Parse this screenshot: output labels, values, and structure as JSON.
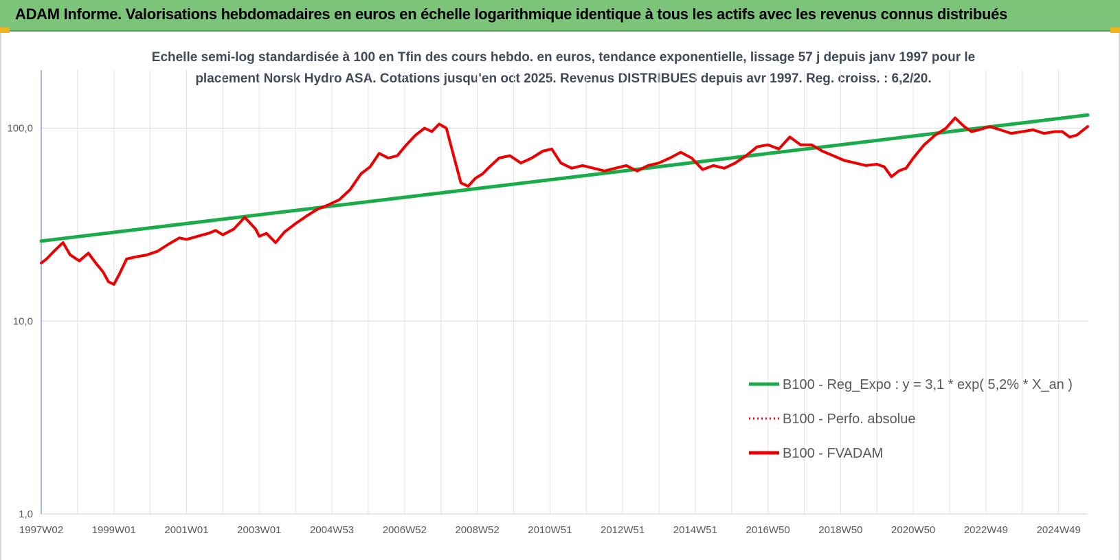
{
  "banner": {
    "title": "ADAM Informe. Valorisations hebdomadaires en euros en échelle logarithmique identique à tous les actifs avec les revenus connus distribués",
    "background_color": "#7cc47a",
    "corner_color": "#f2b21b"
  },
  "chart_data": {
    "type": "line",
    "title_lines": [
      "Echelle semi-log standardisée à 100 en Tfin des cours hebdo. en euros, tendance exponentielle, lissage 57 j depuis janv 1997 pour le",
      "placement Norsk Hydro ASA. Cotations jusqu'en oct 2025. Revenus DISTRIBUES depuis avr 1997. Reg. croiss. : 6,2/20."
    ],
    "y_scale": "log",
    "ylim": [
      1,
      200
    ],
    "xlim": [
      1997.0,
      2025.8
    ],
    "y_ticks": [
      {
        "value": 1,
        "label": "1,0"
      },
      {
        "value": 10,
        "label": "10,0"
      },
      {
        "value": 100,
        "label": "100,0"
      }
    ],
    "x_ticks": [
      {
        "value": 1997.0,
        "label": "1997W02"
      },
      {
        "value": 1999.0,
        "label": "1999W01"
      },
      {
        "value": 2001.0,
        "label": "2001W01"
      },
      {
        "value": 2003.0,
        "label": "2003W01"
      },
      {
        "value": 2005.0,
        "label": "2004W53"
      },
      {
        "value": 2007.0,
        "label": "2006W52"
      },
      {
        "value": 2009.0,
        "label": "2008W52"
      },
      {
        "value": 2011.0,
        "label": "2010W51"
      },
      {
        "value": 2013.0,
        "label": "2012W51"
      },
      {
        "value": 2015.0,
        "label": "2014W51"
      },
      {
        "value": 2017.0,
        "label": "2016W50"
      },
      {
        "value": 2019.0,
        "label": "2018W50"
      },
      {
        "value": 2021.0,
        "label": "2020W50"
      },
      {
        "value": 2023.0,
        "label": "2022W49"
      },
      {
        "value": 2025.0,
        "label": "2024W49"
      }
    ],
    "grid": "vertical-and-horizontal",
    "legend_position": "bottom-right",
    "series": [
      {
        "name": "B100 - Reg_Expo : y = 3,1 * exp( 5,2% *  X_an )",
        "color": "#1aab4b",
        "style": "solid-thick",
        "x": [
          1997.0,
          2025.8
        ],
        "y": [
          26.0,
          117.0
        ]
      },
      {
        "name": "B100 - Perfo. absolue",
        "color": "#ee0000",
        "style": "dotted",
        "x": [],
        "y": []
      },
      {
        "name": "B100 - FVADAM",
        "color": "#ee0000",
        "style": "solid-thick",
        "x": [
          1997.0,
          1997.15,
          1997.35,
          1997.6,
          1997.8,
          1998.05,
          1998.3,
          1998.5,
          1998.7,
          1998.85,
          1999.0,
          1999.15,
          1999.35,
          1999.6,
          1999.9,
          2000.2,
          2000.5,
          2000.8,
          2001.0,
          2001.3,
          2001.6,
          2001.8,
          2002.0,
          2002.3,
          2002.6,
          2002.9,
          2003.0,
          2003.2,
          2003.45,
          2003.7,
          2004.0,
          2004.3,
          2004.6,
          2004.9,
          2005.2,
          2005.5,
          2005.8,
          2006.05,
          2006.3,
          2006.55,
          2006.8,
          2007.05,
          2007.3,
          2007.55,
          2007.75,
          2007.95,
          2008.15,
          2008.35,
          2008.55,
          2008.75,
          2008.95,
          2009.15,
          2009.3,
          2009.6,
          2009.9,
          2010.2,
          2010.5,
          2010.8,
          2011.05,
          2011.3,
          2011.6,
          2011.9,
          2012.2,
          2012.5,
          2012.8,
          2013.1,
          2013.4,
          2013.7,
          2014.0,
          2014.3,
          2014.6,
          2014.9,
          2015.2,
          2015.5,
          2015.8,
          2016.1,
          2016.4,
          2016.7,
          2017.0,
          2017.3,
          2017.6,
          2017.9,
          2018.2,
          2018.5,
          2018.8,
          2019.1,
          2019.4,
          2019.7,
          2020.0,
          2020.2,
          2020.4,
          2020.6,
          2020.8,
          2021.0,
          2021.3,
          2021.6,
          2021.9,
          2022.15,
          2022.4,
          2022.6,
          2022.8,
          2023.1,
          2023.4,
          2023.7,
          2024.0,
          2024.3,
          2024.6,
          2024.9,
          2025.1,
          2025.3,
          2025.5,
          2025.8
        ],
        "y": [
          20.0,
          21.0,
          23.0,
          25.5,
          22.0,
          20.5,
          22.5,
          20.0,
          18.0,
          16.0,
          15.5,
          17.5,
          21.0,
          21.5,
          22.0,
          23.0,
          25.0,
          27.0,
          26.5,
          27.5,
          28.5,
          29.5,
          28.0,
          30.0,
          34.5,
          30.0,
          27.5,
          28.5,
          25.5,
          29.0,
          32.0,
          35.0,
          38.0,
          40.0,
          42.5,
          48.0,
          58.0,
          63.0,
          74.0,
          70.0,
          72.0,
          82.0,
          92.0,
          100.0,
          96.0,
          105.0,
          100.0,
          72.0,
          52.0,
          50.0,
          55.0,
          58.0,
          62.0,
          70.0,
          72.0,
          66.0,
          70.0,
          76.0,
          78.0,
          66.0,
          62.0,
          64.0,
          62.0,
          60.0,
          62.0,
          64.0,
          60.0,
          64.0,
          66.0,
          70.0,
          75.0,
          70.0,
          61.0,
          64.0,
          62.0,
          66.0,
          72.0,
          80.0,
          82.0,
          78.0,
          90.0,
          82.0,
          82.0,
          76.0,
          72.0,
          68.0,
          66.0,
          64.0,
          65.0,
          63.0,
          56.0,
          60.0,
          62.0,
          70.0,
          82.0,
          92.0,
          100.0,
          113.0,
          102.0,
          96.0,
          98.0,
          102.0,
          98.0,
          94.0,
          96.0,
          98.0,
          94.0,
          96.0,
          96.0,
          90.0,
          92.0,
          102.0
        ]
      }
    ]
  }
}
